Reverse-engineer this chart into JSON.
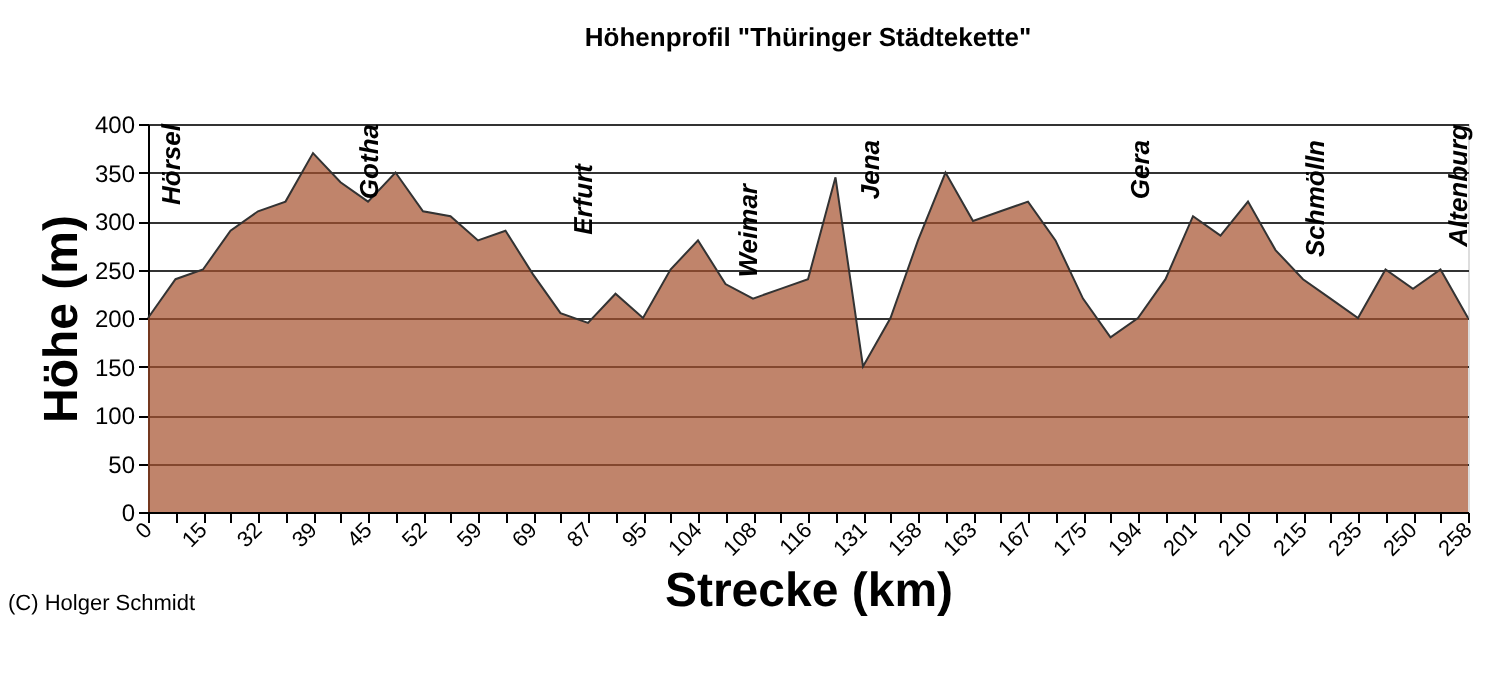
{
  "chart_data": {
    "type": "area",
    "title": "Höhenprofil \"Thüringer Städtekette\"",
    "xlabel": "Strecke (km)",
    "ylabel": "Höhe (m)",
    "categories": [
      "0",
      null,
      "15",
      null,
      "32",
      null,
      "39",
      null,
      "45",
      null,
      "52",
      null,
      "59",
      null,
      "69",
      null,
      "87",
      null,
      "95",
      null,
      "104",
      null,
      "108",
      null,
      "116",
      null,
      "131",
      null,
      "158",
      null,
      "163",
      null,
      "167",
      null,
      "175",
      null,
      "194",
      null,
      "201",
      null,
      "210",
      null,
      "215",
      null,
      "235",
      null,
      "250",
      null,
      "258"
    ],
    "series": [
      {
        "color": "#a5502c",
        "values": [
          200,
          240,
          250,
          290,
          310,
          320,
          370,
          340,
          320,
          350,
          310,
          305,
          280,
          290,
          245,
          205,
          195,
          225,
          200,
          250,
          280,
          235,
          220,
          230,
          240,
          345,
          150,
          200,
          280,
          350,
          300,
          310,
          320,
          280,
          220,
          180,
          200,
          240,
          305,
          285,
          320,
          270,
          240,
          220,
          200,
          250,
          230,
          250,
          200
        ]
      }
    ],
    "ylim": [
      0,
      400
    ],
    "yticks": [
      0,
      50,
      100,
      150,
      200,
      250,
      300,
      350,
      400
    ],
    "grid": "y",
    "annotations": [
      "Hörsel",
      "Gotha",
      "Erfurt",
      "Weimar",
      "Jena",
      "Gera",
      "Schmölln",
      "Altenburg",
      "(C) Holger Schmidt"
    ]
  }
}
